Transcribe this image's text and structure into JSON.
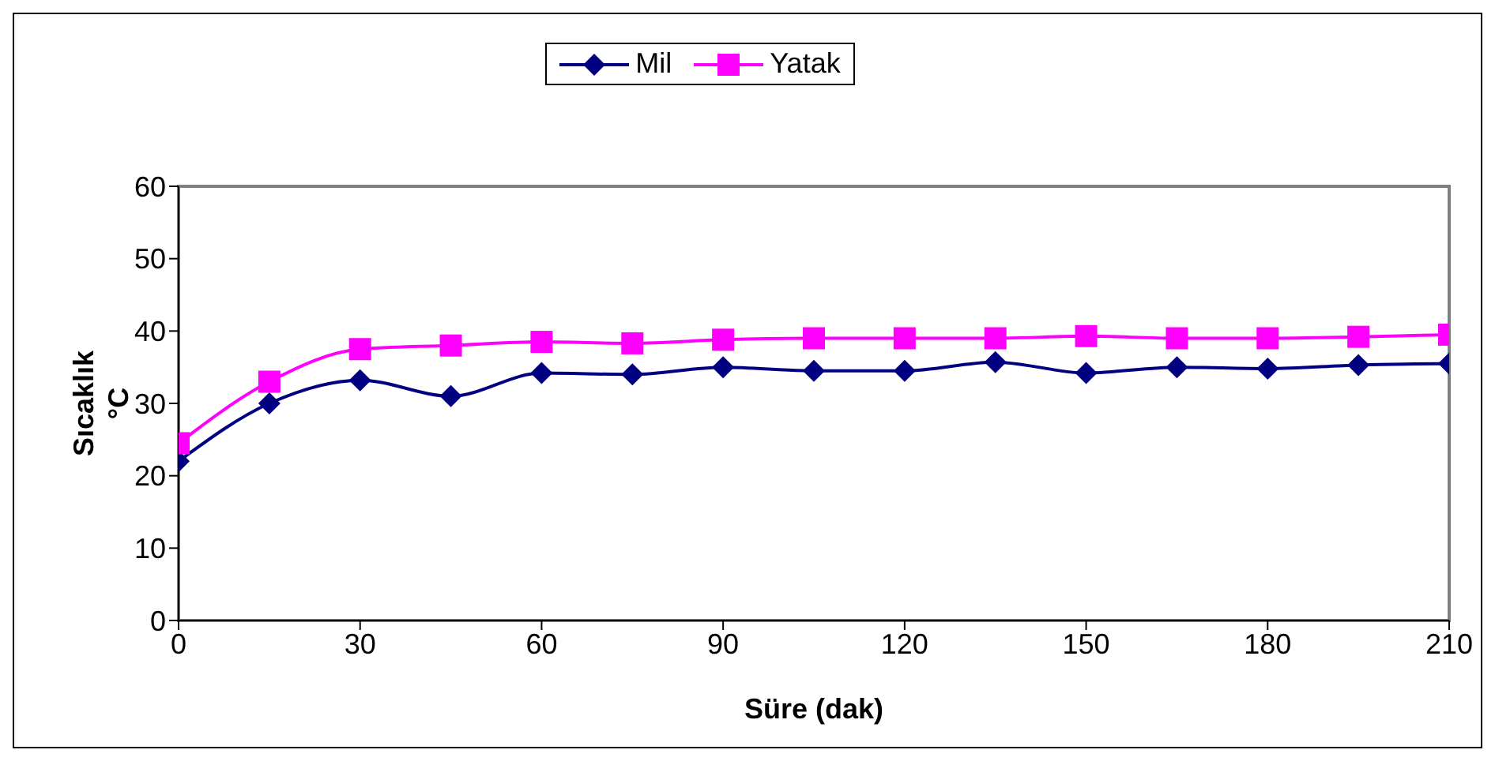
{
  "chart_data": {
    "type": "line",
    "xlabel": "Süre (dak)",
    "ylabel": "Sıcaklık\n°C",
    "x": [
      0,
      15,
      30,
      45,
      60,
      75,
      90,
      105,
      120,
      135,
      150,
      165,
      180,
      195,
      210
    ],
    "xlim": [
      0,
      210
    ],
    "xticks": [
      0,
      30,
      60,
      90,
      120,
      150,
      180,
      210
    ],
    "ylim": [
      0,
      60
    ],
    "yticks": [
      0,
      10,
      20,
      30,
      40,
      50,
      60
    ],
    "grid": false,
    "legend": "top",
    "line_style": "solid",
    "series": [
      {
        "name": "Mil",
        "color": "#000080",
        "marker": "diamond",
        "values": [
          22,
          30,
          33.2,
          31,
          34.2,
          34,
          35,
          34.5,
          34.5,
          35.7,
          34.2,
          35,
          34.8,
          35.3,
          35.5
        ]
      },
      {
        "name": "Yatak",
        "color": "#ff00ff",
        "marker": "square",
        "values": [
          24.5,
          33,
          37.5,
          38,
          38.5,
          38.3,
          38.8,
          39,
          39,
          39,
          39.3,
          39,
          39,
          39.2,
          39.5
        ]
      }
    ]
  }
}
